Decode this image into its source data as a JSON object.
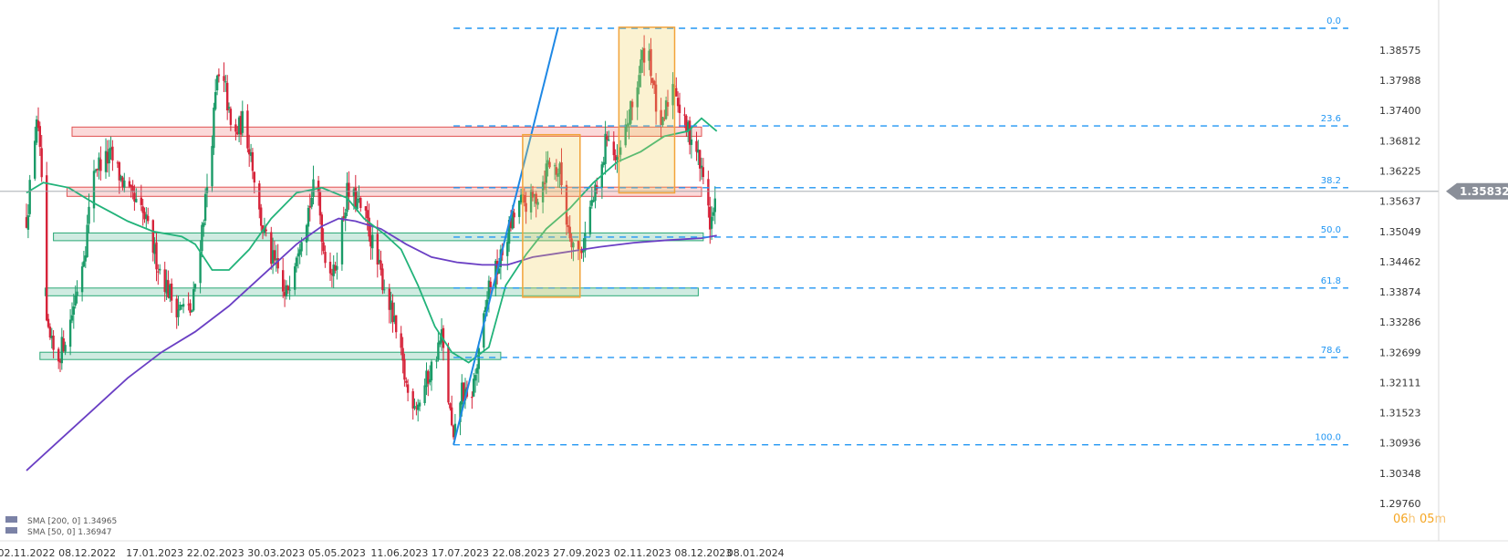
{
  "chart_data": {
    "type": "candlestick",
    "price_ticks": [
      "1.38575",
      "1.37988",
      "1.37400",
      "1.36812",
      "1.36225",
      "1.35637",
      "1.35049",
      "1.34462",
      "1.33874",
      "1.33286",
      "1.32699",
      "1.32111",
      "1.31523",
      "1.30936",
      "1.30348",
      "1.29760"
    ],
    "price_range": [
      1.2976,
      1.3916
    ],
    "date_ticks": [
      "02.11.2022",
      "08.12.2022",
      "17.01.2023",
      "22.02.2023",
      "30.03.2023",
      "05.05.2023",
      "11.06.2023",
      "17.07.2023",
      "22.08.2023",
      "27.09.2023",
      "02.11.2023",
      "08.12.2023",
      "08.01.2024"
    ],
    "current_price": "1.35832",
    "countdown": {
      "hours": "06",
      "h": "h",
      "minutes": "05",
      "m": "m"
    },
    "legend": [
      "SMA [200, 0] 1.34965",
      "SMA [50, 0] 1.36947"
    ],
    "fib_labels": [
      "0.0",
      "23.6",
      "38.2",
      "50.0",
      "61.8",
      "78.6",
      "100.0"
    ],
    "fib_levels": [
      1.39,
      1.371,
      1.359,
      1.3494,
      1.3395,
      1.326,
      1.309
    ],
    "zones": [
      {
        "kind": "resistance",
        "x0": "2022-11-29",
        "x1": "2023-12-07",
        "lo": 1.369,
        "hi": 1.3708
      },
      {
        "kind": "resistance",
        "x0": "2022-11-26",
        "x1": "2023-12-07",
        "lo": 1.3573,
        "hi": 1.3591
      },
      {
        "kind": "support",
        "x0": "2022-11-18",
        "x1": "2023-12-08",
        "lo": 1.3487,
        "hi": 1.3502
      },
      {
        "kind": "support",
        "x0": "2022-11-13",
        "x1": "2023-12-05",
        "lo": 1.338,
        "hi": 1.3395
      },
      {
        "kind": "support",
        "x0": "2022-11-10",
        "x1": "2023-08-10",
        "lo": 1.3256,
        "hi": 1.327
      }
    ],
    "boxes": [
      {
        "x0": "2023-08-23",
        "x1": "2023-09-26",
        "lo": 1.3377,
        "hi": 1.3693
      },
      {
        "x0": "2023-10-19",
        "x1": "2023-11-21",
        "lo": 1.358,
        "hi": 1.3902
      }
    ],
    "trendline": {
      "x0": "2023-07-13",
      "y0": 1.309,
      "x1": "2023-09-13",
      "y1": 1.3902
    },
    "current_price_line": 1.3583
  }
}
